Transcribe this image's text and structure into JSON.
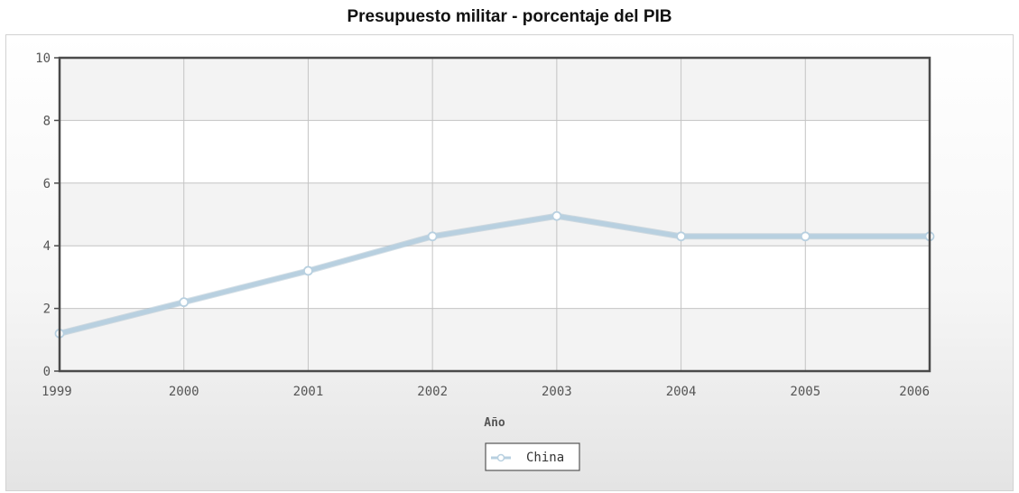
{
  "chart_data": {
    "type": "line",
    "title": "Presupuesto militar - porcentaje del PIB",
    "xlabel": "Año",
    "ylabel": "",
    "x": [
      "1999",
      "2000",
      "2001",
      "2002",
      "2003",
      "2004",
      "2005",
      "2006"
    ],
    "ylim": [
      0,
      10
    ],
    "yticks": [
      0,
      2,
      4,
      6,
      8,
      10
    ],
    "grid": true,
    "legend_position": "bottom-center",
    "series": [
      {
        "name": "China",
        "values": [
          1.2,
          2.2,
          3.2,
          4.3,
          4.95,
          4.3,
          4.3,
          4.3
        ],
        "color": "#b8d0e0"
      }
    ]
  }
}
